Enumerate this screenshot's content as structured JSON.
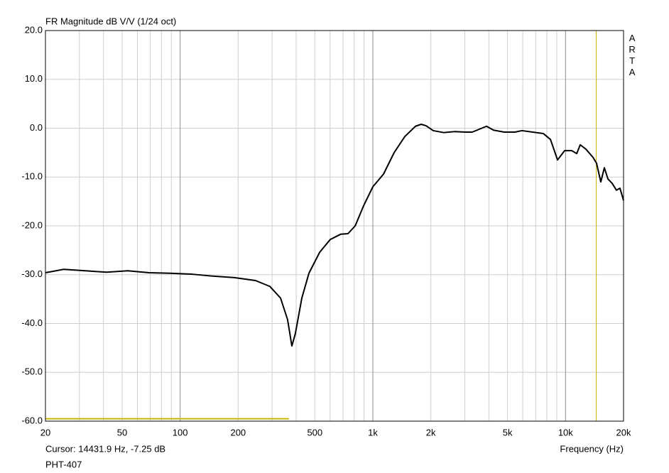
{
  "chart_data": {
    "type": "line",
    "title": "FR Magnitude dB V/V (1/24 oct)",
    "watermark": "ARTA",
    "xlabel": "Frequency (Hz)",
    "cursor": {
      "label": "Cursor: 14431.9 Hz, -7.25 dB",
      "x": 14431.9,
      "color": "#c8b400"
    },
    "footer": "PHT-407",
    "log_x": true,
    "grid": true,
    "xlim": [
      20,
      20000
    ],
    "ylim": [
      -60,
      20
    ],
    "xticks": [
      20,
      50,
      100,
      200,
      500,
      {
        "value": 1000,
        "label": "1k"
      },
      {
        "value": 2000,
        "label": "2k"
      },
      {
        "value": 5000,
        "label": "5k"
      },
      {
        "value": 10000,
        "label": "10k"
      },
      {
        "value": 20000,
        "label": "20k"
      }
    ],
    "x_minor_grid": [
      30,
      40,
      60,
      70,
      80,
      90,
      300,
      400,
      600,
      700,
      800,
      900,
      3000,
      4000,
      6000,
      7000,
      8000,
      9000
    ],
    "yticks": [
      {
        "value": 20,
        "label": "20.0"
      },
      {
        "value": 10,
        "label": "10.0"
      },
      {
        "value": 0,
        "label": "0.0"
      },
      {
        "value": -10,
        "label": "-10.0"
      },
      {
        "value": -20,
        "label": "-20.0"
      },
      {
        "value": -30,
        "label": "-30.0"
      },
      {
        "value": -40,
        "label": "-40.0"
      },
      {
        "value": -50,
        "label": "-50.0"
      },
      {
        "value": -60,
        "label": "-60.0"
      }
    ],
    "noise_marker": {
      "x": [
        20,
        367
      ],
      "y": -59.5,
      "color": "#c8b400"
    },
    "x": [
      20,
      24.9,
      32.2,
      41.5,
      53.5,
      69,
      89,
      115,
      148,
      191,
      246,
      292,
      332,
      361,
      380,
      396,
      428,
      466,
      530,
      601,
      682,
      743,
      810,
      895,
      1000,
      1136,
      1290,
      1466,
      1665,
      1782,
      1889,
      2057,
      2334,
      2655,
      3013,
      3280,
      3573,
      3890,
      4230,
      4808,
      5460,
      5943,
      6750,
      7670,
      8350,
      9090,
      9890,
      10770,
      11430,
      11920,
      12760,
      13900,
      14490,
      15240,
      15900,
      16600,
      17460,
      18370,
      19160,
      20000
    ],
    "series": [
      {
        "name": "PHT-407",
        "color": "#000000",
        "values": [
          -29.6,
          -28.9,
          -29.2,
          -29.5,
          -29.2,
          -29.6,
          -29.7,
          -29.9,
          -30.3,
          -30.6,
          -31.2,
          -32.4,
          -34.8,
          -39.2,
          -44.6,
          -42.1,
          -34.8,
          -29.7,
          -25.4,
          -22.8,
          -21.7,
          -21.6,
          -20.0,
          -15.9,
          -12.0,
          -9.4,
          -5.0,
          -1.7,
          0.4,
          0.8,
          0.5,
          -0.5,
          -0.9,
          -0.7,
          -0.8,
          -0.8,
          -0.2,
          0.4,
          -0.4,
          -0.8,
          -0.8,
          -0.5,
          -0.8,
          -1.1,
          -2.3,
          -6.5,
          -4.6,
          -4.6,
          -5.2,
          -3.4,
          -4.3,
          -6.0,
          -7.2,
          -11.0,
          -8.1,
          -10.4,
          -11.3,
          -12.7,
          -12.3,
          -14.8
        ]
      }
    ]
  }
}
